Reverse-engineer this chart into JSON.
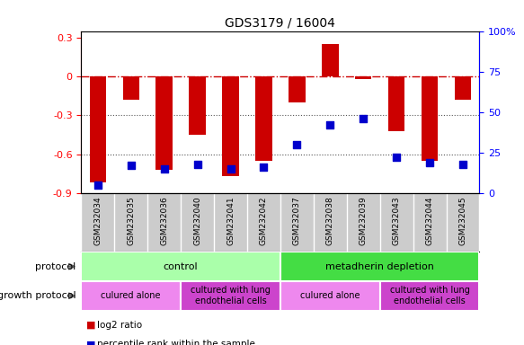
{
  "title": "GDS3179 / 16004",
  "samples": [
    "GSM232034",
    "GSM232035",
    "GSM232036",
    "GSM232040",
    "GSM232041",
    "GSM232042",
    "GSM232037",
    "GSM232038",
    "GSM232039",
    "GSM232043",
    "GSM232044",
    "GSM232045"
  ],
  "log2_ratio": [
    -0.82,
    -0.18,
    -0.72,
    -0.45,
    -0.77,
    -0.65,
    -0.2,
    0.25,
    -0.02,
    -0.42,
    -0.65,
    -0.18
  ],
  "percentile": [
    5,
    17,
    15,
    18,
    15,
    16,
    30,
    42,
    46,
    22,
    19,
    18
  ],
  "ylim_left": [
    -0.9,
    0.35
  ],
  "ylim_right": [
    0,
    100
  ],
  "yticks_left": [
    -0.9,
    -0.6,
    -0.3,
    0.0,
    0.3
  ],
  "yticks_left_labels": [
    "-0.9",
    "-0.6",
    "-0.3",
    "0",
    "0.3"
  ],
  "yticks_right": [
    0,
    25,
    50,
    75,
    100
  ],
  "yticks_right_labels": [
    "0",
    "25",
    "50",
    "75",
    "100%"
  ],
  "bar_color": "#cc0000",
  "dot_color": "#0000cc",
  "hline_color": "#cc0000",
  "dotline_color": "#555555",
  "bg_color": "#ffffff",
  "protocol_row": [
    {
      "label": "control",
      "start": 0,
      "end": 5,
      "color": "#aaffaa"
    },
    {
      "label": "metadherin depletion",
      "start": 6,
      "end": 11,
      "color": "#44dd44"
    }
  ],
  "growth_row": [
    {
      "label": "culured alone",
      "start": 0,
      "end": 2,
      "color": "#ee88ee"
    },
    {
      "label": "cultured with lung\nendothelial cells",
      "start": 3,
      "end": 5,
      "color": "#cc44cc"
    },
    {
      "label": "culured alone",
      "start": 6,
      "end": 8,
      "color": "#ee88ee"
    },
    {
      "label": "cultured with lung\nendothelial cells",
      "start": 9,
      "end": 11,
      "color": "#cc44cc"
    }
  ],
  "legend_items": [
    {
      "label": "log2 ratio",
      "color": "#cc0000"
    },
    {
      "label": "percentile rank within the sample",
      "color": "#0000cc"
    }
  ],
  "bar_width": 0.5,
  "dot_size": 30
}
